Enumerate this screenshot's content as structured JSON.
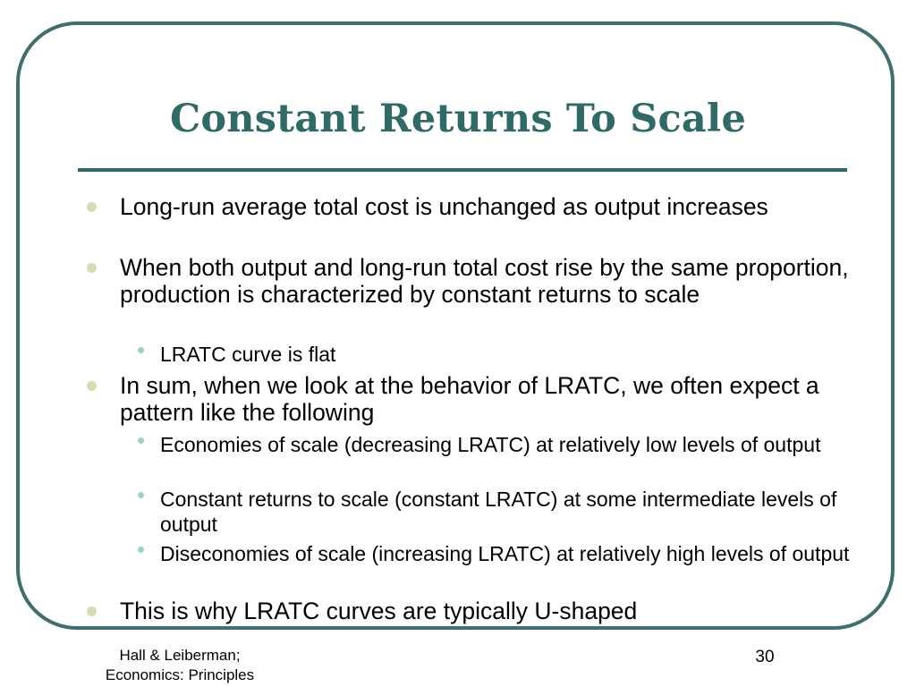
{
  "slide": {
    "title": "Constant Returns To Scale",
    "bullets": [
      "Long-run average total cost is unchanged as output increases",
      "When both output and long-run total cost rise by the same proportion, production is characterized by constant returns to scale",
      "LRATC curve is flat",
      "In sum, when we look at the behavior of LRATC, we often expect a pattern like the following",
      "Economies of scale (decreasing LRATC) at relatively low levels of output",
      "Constant returns to scale (constant LRATC) at some intermediate levels of output",
      "Diseconomies of scale (increasing LRATC) at relatively high levels of output",
      "This is why LRATC curves are typically U-shaped"
    ]
  },
  "footer": {
    "source_line1": "Hall & Leiberman;",
    "source_line2": "Economics:  Principles",
    "page_number": "30"
  },
  "colors": {
    "title": "#2f6a67",
    "frame": "#3f6f6e",
    "bullet_level1": "#d8dbb6",
    "bullet_level2": "#9dcfc9"
  }
}
